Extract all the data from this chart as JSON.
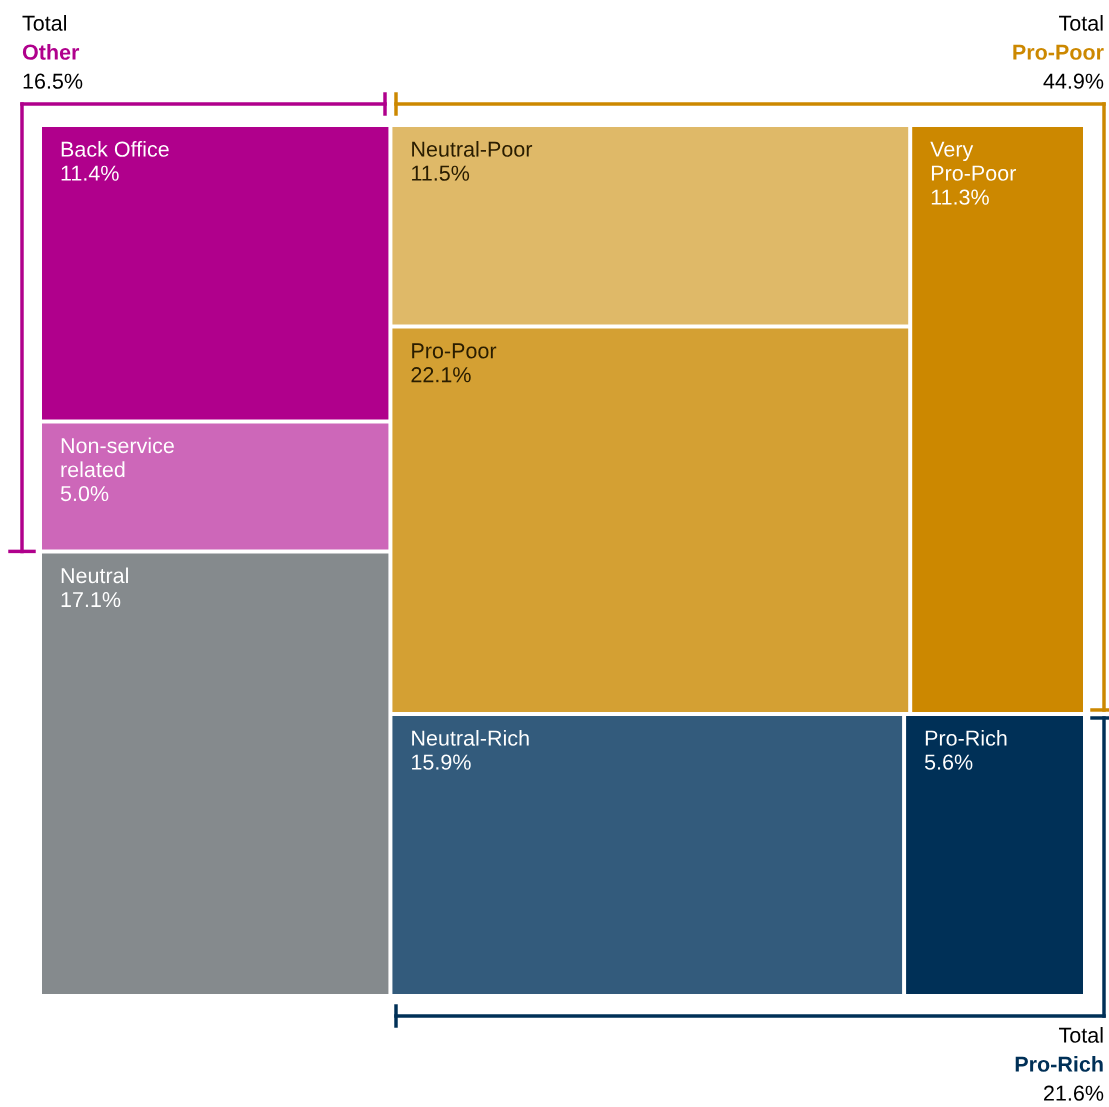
{
  "chart_data": {
    "type": "other",
    "categories": [
      "Back Office",
      "Non-service\nrelated",
      "Neutral",
      "Neutral-Poor",
      "Pro-Poor",
      "Very\nPro-Poor",
      "Neutral-Rich",
      "Pro-Rich"
    ],
    "values": [
      11.4,
      5.0,
      17.1,
      11.5,
      22.1,
      11.3,
      15.9,
      5.6
    ],
    "colors": [
      "#b0008c",
      "#cd67b9",
      "#858a8d",
      "#dfb968",
      "#d4a033",
      "#cc8800",
      "#335b7c",
      "#003057"
    ],
    "value_labels": [
      "11.4%",
      "5.0%",
      "17.1%",
      "11.5%",
      "22.1%",
      "11.3%",
      "15.9%",
      "5.6%"
    ],
    "annotations": [
      "Total\nOther\n16.5%",
      "Total\nPro-Poor\n44.9%",
      "Total\nPro-Rich\n21.6%"
    ]
  }
}
